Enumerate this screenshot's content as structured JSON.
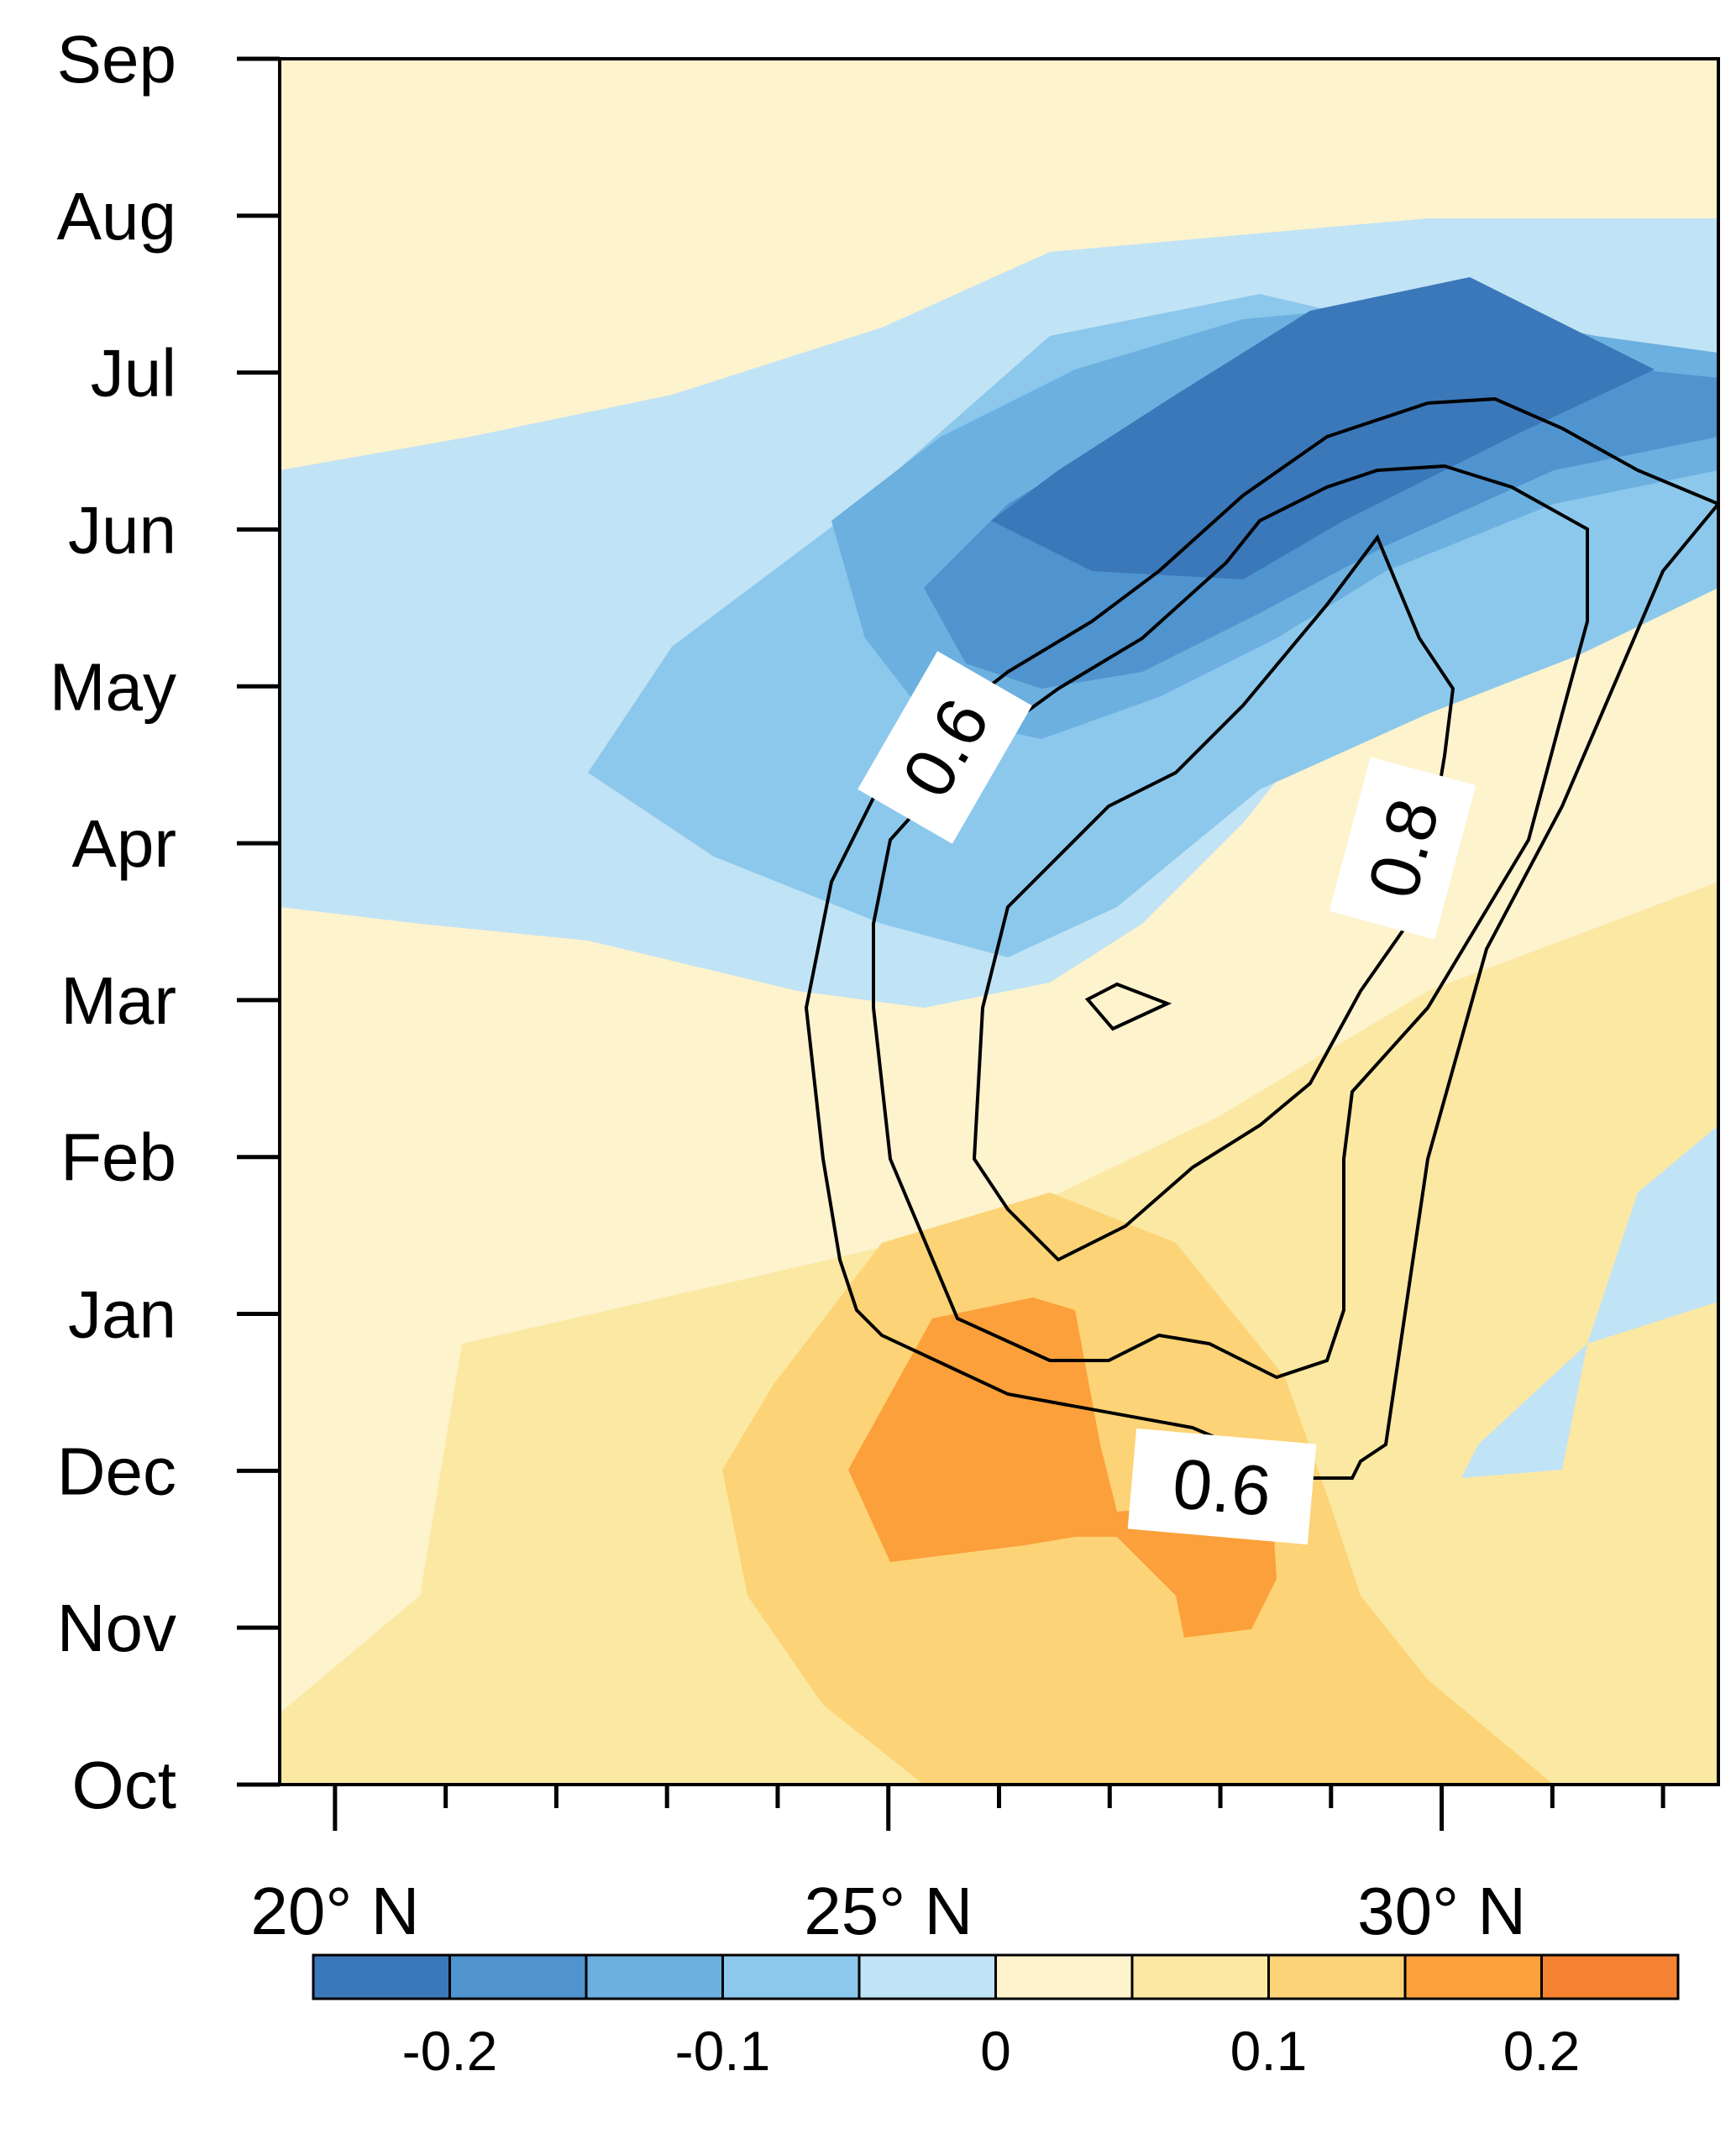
{
  "chart_data": {
    "type": "heatmap",
    "title": "",
    "xlabel": "",
    "ylabel": "",
    "x_axis": {
      "units": "degrees north latitude",
      "range": [
        19.5,
        32.5
      ],
      "tick_labels": [
        "20° N",
        "25° N",
        "30° N"
      ],
      "tick_values": [
        20,
        25,
        30
      ],
      "minor_tick_step": 1
    },
    "y_axis": {
      "tick_labels": [
        "Oct",
        "Nov",
        "Dec",
        "Jan",
        "Feb",
        "Mar",
        "Apr",
        "May",
        "Jun",
        "Jul",
        "Aug",
        "Sep"
      ],
      "order": "bottom-to-top"
    },
    "colorbar": {
      "levels": [
        -0.25,
        -0.2,
        -0.15,
        -0.1,
        -0.05,
        0,
        0.05,
        0.1,
        0.15,
        0.2,
        0.25
      ],
      "colors": [
        "#3a78ba",
        "#4f94cf",
        "#6bb0df",
        "#8cc8ec",
        "#c1e3f6",
        "#fdf3cd",
        "#fbe8a3",
        "#fcd376",
        "#fba03a",
        "#f58231"
      ],
      "tick_labels": [
        "-0.2",
        "-0.1",
        "0",
        "0.1",
        "0.2"
      ],
      "tick_values": [
        -0.2,
        -0.1,
        0,
        0.1,
        0.2
      ]
    },
    "contours": {
      "levels": [
        0.6,
        0.7,
        0.8
      ],
      "labels": [
        "0.6",
        "0.8",
        "0.6"
      ],
      "color": "#000000"
    }
  },
  "colors": {
    "background": "#ffffff",
    "axis": "#000000",
    "contour": "#000000"
  }
}
